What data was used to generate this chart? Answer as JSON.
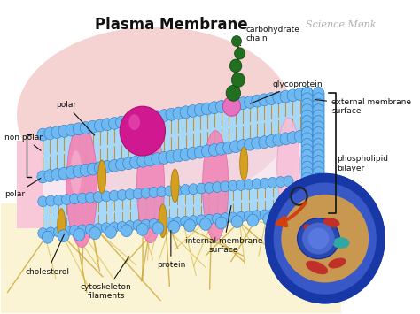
{
  "title": "Plasma Membrane",
  "watermark": "Science Mønk",
  "labels": {
    "carbohydrate_chain": "carbohydrate\nchain",
    "glycoprotein": "glycoprotein",
    "external_membrane": "external membrane\nsurface",
    "phospholipid": "phospholipid\nbilayer",
    "polar_top": "polar",
    "non_polar": "non polar",
    "polar_bottom": "polar",
    "internal_membrane": "internal membrane\nsurface",
    "protein": "protein",
    "cholesterol": "cholesterol",
    "cytoskeleton": "cytoskeleton\nfilaments"
  },
  "colors": {
    "white": "#ffffff",
    "bg": "#f5f0ee",
    "pink_glow": "#f0b0b0",
    "membrane_blue": "#70b8f0",
    "membrane_blue_dark": "#2878c8",
    "membrane_blue_mid": "#90ccf8",
    "membrane_fill": "#a8d8f8",
    "protein_magenta": "#d01890",
    "protein_pink": "#f088b8",
    "protein_light": "#f8c0d8",
    "cholesterol_gold": "#d4a020",
    "tail_orange": "#c89030",
    "carb_green": "#207020",
    "glyco_pink": "#e870c0",
    "cell_dark_blue": "#1838a8",
    "cell_mid_blue": "#3858c8",
    "cell_tan": "#c89850",
    "cell_nucleus": "#2848b8",
    "cell_red": "#c03028",
    "cell_teal": "#30a8a0",
    "arrow_red": "#d04010",
    "arrow_orange": "#e06820",
    "label_black": "#111111",
    "watermark_gray": "#b0b0b0",
    "yellow_bg": "#f8e8a0"
  },
  "figsize": [
    4.74,
    3.55
  ],
  "dpi": 100
}
